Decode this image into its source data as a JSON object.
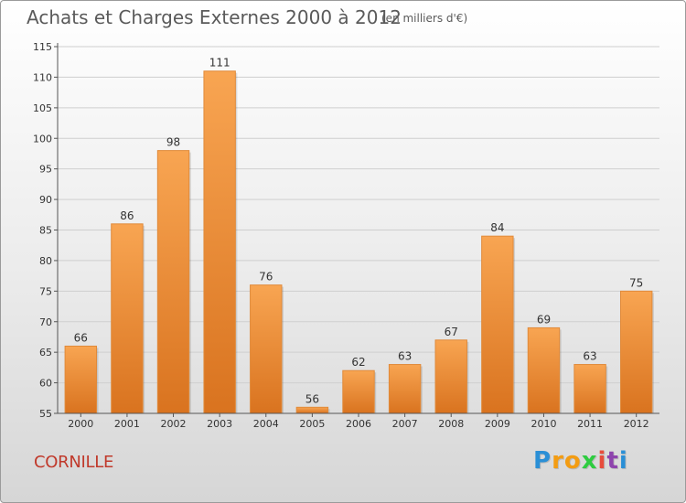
{
  "header": {
    "title": "Achats et Charges Externes 2000 à 2012",
    "unit": "(en milliers d'€)"
  },
  "footer": {
    "place": "CORNILLE",
    "logo_letters": [
      "P",
      "r",
      "o",
      "x",
      "i",
      "t",
      "i"
    ],
    "logo_colors": [
      "#2a8fd6",
      "#f39c12",
      "#f39c12",
      "#2ecc40",
      "#e74c3c",
      "#8e44ad",
      "#2a8fd6"
    ]
  },
  "chart_data": {
    "type": "bar",
    "title": "Achats et Charges Externes 2000 à 2012",
    "subtitle": "(en milliers d'€)",
    "categories": [
      "2000",
      "2001",
      "2002",
      "2003",
      "2004",
      "2005",
      "2006",
      "2007",
      "2008",
      "2009",
      "2010",
      "2011",
      "2012"
    ],
    "values": [
      66,
      86,
      98,
      111,
      76,
      56,
      62,
      63,
      67,
      84,
      69,
      63,
      75
    ],
    "ylim": [
      55,
      115
    ],
    "yticks": [
      55,
      60,
      65,
      70,
      75,
      80,
      85,
      90,
      95,
      100,
      105,
      110,
      115
    ],
    "grid": true,
    "bar_color": "#f0903a",
    "legend": "none"
  }
}
